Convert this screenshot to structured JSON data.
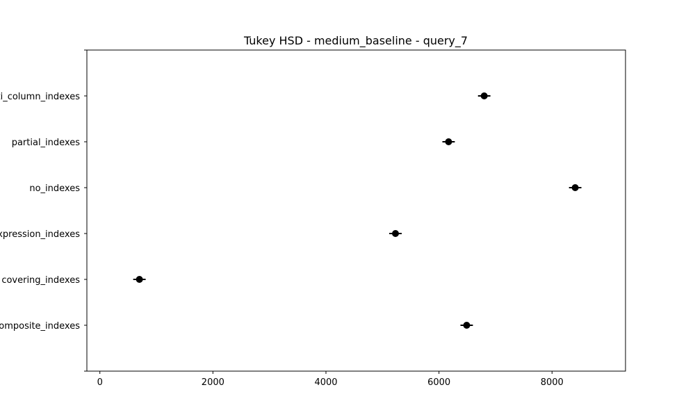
{
  "chart_data": {
    "type": "scatter",
    "title": "Tukey HSD - medium_baseline - query_7",
    "xlabel": "",
    "ylabel": "",
    "categories": [
      "multi_column_indexes",
      "partial_indexes",
      "no_indexes",
      "expression_indexes",
      "covering_indexes",
      "composite_indexes"
    ],
    "x_ticks": [
      0,
      2000,
      4000,
      6000,
      8000
    ],
    "x_tick_labels": [
      "0",
      "2000",
      "4000",
      "6000",
      "8000"
    ],
    "xlim": [
      -230,
      9300
    ],
    "grid": false,
    "points": [
      {
        "group": "multi_column_indexes",
        "mean": 6800,
        "lower": 6690,
        "upper": 6910
      },
      {
        "group": "partial_indexes",
        "mean": 6170,
        "lower": 6060,
        "upper": 6280
      },
      {
        "group": "no_indexes",
        "mean": 8410,
        "lower": 8300,
        "upper": 8520
      },
      {
        "group": "expression_indexes",
        "mean": 5230,
        "lower": 5120,
        "upper": 5340
      },
      {
        "group": "covering_indexes",
        "mean": 700,
        "lower": 590,
        "upper": 810
      },
      {
        "group": "composite_indexes",
        "mean": 6490,
        "lower": 6380,
        "upper": 6600
      }
    ],
    "marker_color": "#000000",
    "errorbar_color": "#000000"
  }
}
